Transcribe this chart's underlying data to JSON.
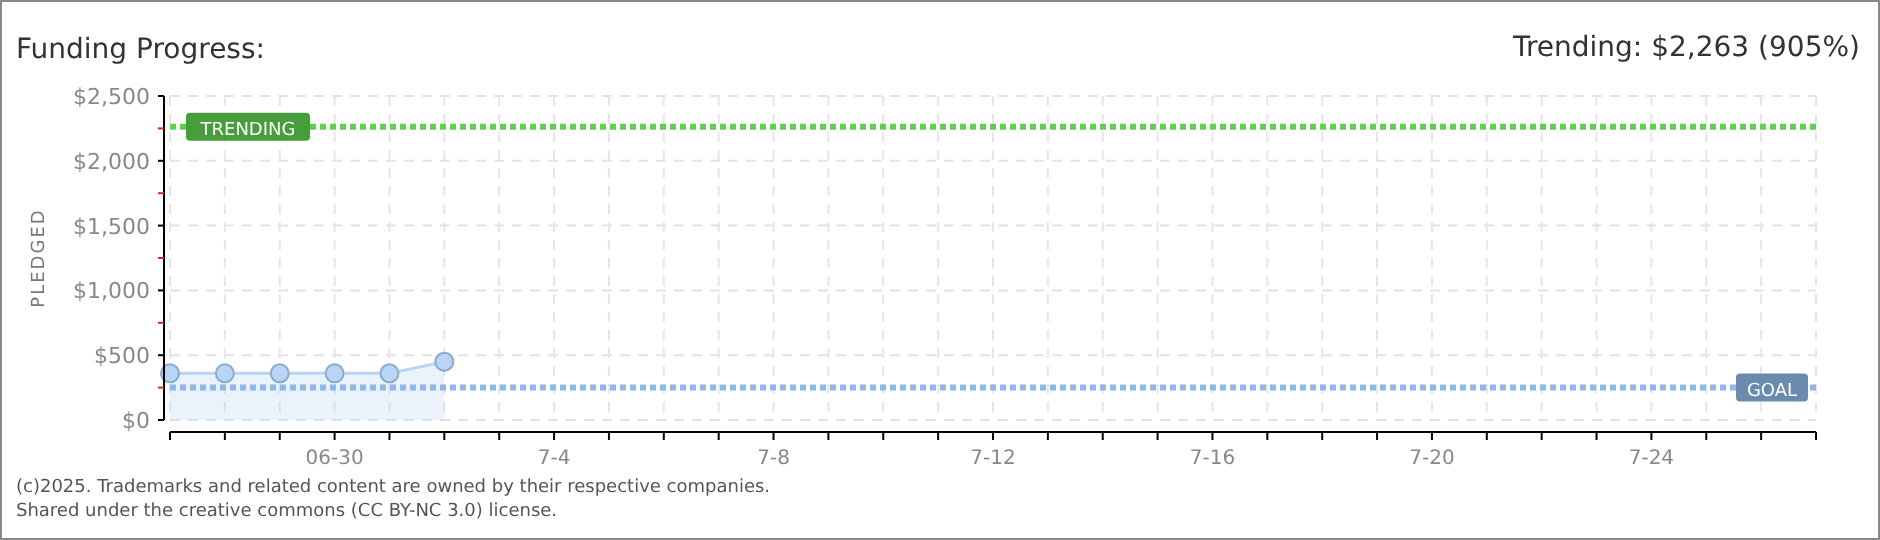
{
  "chart_data": {
    "type": "area",
    "title": "Funding Progress:",
    "ylabel": "PLEDGED",
    "x": [
      "--06-27",
      "--06-28",
      "--06-29",
      "--06-30",
      "--07-01",
      "--07-02"
    ],
    "series": [
      {
        "color": "#b9d5f3",
        "values": [
          360,
          360,
          360,
          360,
          360,
          450
        ]
      }
    ],
    "xlim": [
      "--06-27",
      "--07-27"
    ],
    "xticks": [
      {
        "value": "--06-27",
        "label": null
      },
      {
        "value": "--06-28",
        "label": null
      },
      {
        "value": "--06-29",
        "label": null
      },
      {
        "value": "--06-30",
        "label": "06-30"
      },
      {
        "value": "--07-01",
        "label": null
      },
      {
        "value": "--07-02",
        "label": null
      },
      {
        "value": "--07-03",
        "label": null
      },
      {
        "value": "--07-04",
        "label": "7-4"
      },
      {
        "value": "--07-05",
        "label": null
      },
      {
        "value": "--07-06",
        "label": null
      },
      {
        "value": "--07-07",
        "label": null
      },
      {
        "value": "--07-08",
        "label": "7-8"
      },
      {
        "value": "--07-09",
        "label": null
      },
      {
        "value": "--07-10",
        "label": null
      },
      {
        "value": "--07-11",
        "label": null
      },
      {
        "value": "--07-12",
        "label": "7-12"
      },
      {
        "value": "--07-13",
        "label": null
      },
      {
        "value": "--07-14",
        "label": null
      },
      {
        "value": "--07-15",
        "label": null
      },
      {
        "value": "--07-16",
        "label": "7-16"
      },
      {
        "value": "--07-17",
        "label": null
      },
      {
        "value": "--07-18",
        "label": null
      },
      {
        "value": "--07-19",
        "label": null
      },
      {
        "value": "--07-20",
        "label": "7-20"
      },
      {
        "value": "--07-21",
        "label": null
      },
      {
        "value": "--07-22",
        "label": null
      },
      {
        "value": "--07-23",
        "label": null
      },
      {
        "value": "--07-24",
        "label": "7-24"
      },
      {
        "value": "--07-25",
        "label": null
      },
      {
        "value": "--07-26",
        "label": null
      },
      {
        "value": "--07-27",
        "label": null
      }
    ],
    "ylim": [
      0,
      2500
    ],
    "yticks": [
      {
        "value": 0,
        "label": "$0"
      },
      {
        "value": 250,
        "label": null
      },
      {
        "value": 500,
        "label": "$500"
      },
      {
        "value": 750,
        "label": null
      },
      {
        "value": 1000,
        "label": "$1,000"
      },
      {
        "value": 1250,
        "label": null
      },
      {
        "value": 1500,
        "label": "$1,500"
      },
      {
        "value": 1750,
        "label": null
      },
      {
        "value": 2000,
        "label": "$2,000"
      },
      {
        "value": 2250,
        "label": null
      },
      {
        "value": 2500,
        "label": "$2,500"
      }
    ],
    "grid": true,
    "marker": "circle",
    "ref_lines": [
      {
        "axis": "y",
        "value": 2263,
        "label": "TRENDING",
        "color": "#5fcf4f",
        "line_style": "dotted"
      },
      {
        "axis": "y",
        "value": 250,
        "label": "GOAL",
        "color": "#8db8e8",
        "line_style": "dotted"
      }
    ],
    "annotations": [
      "Trending: $2,263 (905%)",
      "(c)2025. Trademarks and related content are owned by their respective companies.",
      "Shared under the creative commons (CC BY-NC 3.0) license."
    ]
  }
}
